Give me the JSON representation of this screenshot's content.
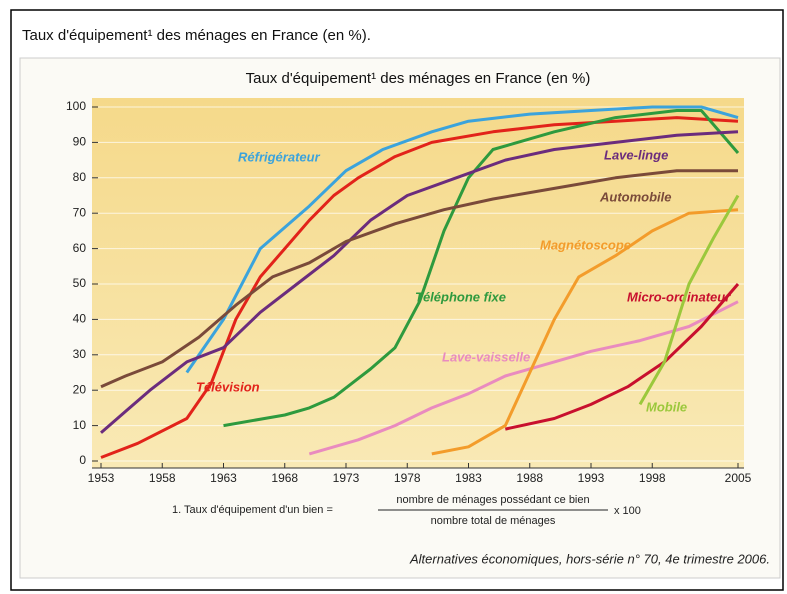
{
  "heading": "Taux d'équipement¹ des ménages en France (en %).",
  "chart_data": {
    "type": "line",
    "title": "Taux d'équipement¹ des ménages en France (en %)",
    "xlim": [
      1953,
      2005
    ],
    "xticks": [
      1953,
      1958,
      1963,
      1968,
      1973,
      1978,
      1983,
      1988,
      1993,
      1998,
      2005
    ],
    "ylim": [
      0,
      100
    ],
    "yticks": [
      0,
      10,
      20,
      30,
      40,
      50,
      60,
      70,
      80,
      90,
      100
    ],
    "grid": true,
    "series": [
      {
        "name": "Réfrigérateur",
        "color": "#3ba3dc",
        "x": [
          1960,
          1963,
          1966,
          1970,
          1973,
          1976,
          1980,
          1983,
          1988,
          1993,
          1998,
          2002,
          2005
        ],
        "values": [
          25,
          40,
          60,
          72,
          82,
          88,
          93,
          96,
          98,
          99,
          100,
          100,
          97
        ]
      },
      {
        "name": "Télévision",
        "color": "#e2231a",
        "x": [
          1953,
          1956,
          1960,
          1962,
          1964,
          1966,
          1968,
          1970,
          1972,
          1974,
          1977,
          1980,
          1985,
          1990,
          1995,
          2000,
          2005
        ],
        "values": [
          1,
          5,
          12,
          22,
          40,
          52,
          60,
          68,
          75,
          80,
          86,
          90,
          93,
          95,
          96,
          97,
          96
        ]
      },
      {
        "name": "Téléphone fixe",
        "color": "#2e9a3e",
        "x": [
          1963,
          1968,
          1970,
          1972,
          1975,
          1977,
          1979,
          1981,
          1983,
          1985,
          1990,
          1995,
          2000,
          2002,
          2005
        ],
        "values": [
          10,
          13,
          15,
          18,
          26,
          32,
          45,
          65,
          80,
          88,
          93,
          97,
          99,
          99,
          87
        ]
      },
      {
        "name": "Lave-linge",
        "color": "#6b2c7d",
        "x": [
          1953,
          1957,
          1960,
          1963,
          1966,
          1969,
          1972,
          1975,
          1978,
          1982,
          1986,
          1990,
          1995,
          2000,
          2005
        ],
        "values": [
          8,
          20,
          28,
          32,
          42,
          50,
          58,
          68,
          75,
          80,
          85,
          88,
          90,
          92,
          93
        ]
      },
      {
        "name": "Automobile",
        "color": "#7a4a3a",
        "x": [
          1953,
          1955,
          1958,
          1961,
          1964,
          1967,
          1970,
          1973,
          1977,
          1981,
          1985,
          1990,
          1995,
          2000,
          2005
        ],
        "values": [
          21,
          24,
          28,
          35,
          44,
          52,
          56,
          62,
          67,
          71,
          74,
          77,
          80,
          82,
          82
        ]
      },
      {
        "name": "Lave-vaisselle",
        "color": "#e98bbf",
        "x": [
          1970,
          1974,
          1977,
          1980,
          1983,
          1986,
          1990,
          1993,
          1997,
          2001,
          2005
        ],
        "values": [
          2,
          6,
          10,
          15,
          19,
          24,
          28,
          31,
          34,
          38,
          45
        ]
      },
      {
        "name": "Magnétoscope",
        "color": "#f39c2b",
        "x": [
          1980,
          1983,
          1986,
          1988,
          1990,
          1992,
          1995,
          1998,
          2001,
          2005
        ],
        "values": [
          2,
          4,
          10,
          25,
          40,
          52,
          58,
          65,
          70,
          71
        ]
      },
      {
        "name": "Micro-ordinateur",
        "color": "#c8102e",
        "x": [
          1986,
          1990,
          1993,
          1996,
          1999,
          2002,
          2005
        ],
        "values": [
          9,
          12,
          16,
          21,
          28,
          38,
          50
        ]
      },
      {
        "name": "Mobile",
        "color": "#9bc83c",
        "x": [
          1997,
          1999,
          2001,
          2003,
          2005
        ],
        "values": [
          16,
          28,
          50,
          63,
          75
        ]
      }
    ]
  },
  "footnote": {
    "label": "1. Taux d'équipement d'un bien =",
    "numerator": "nombre de ménages possédant ce bien",
    "denominator": "nombre total de ménages",
    "factor": "x 100"
  },
  "source": "Alternatives économiques, hors-série n° 70, 4e trimestre 2006."
}
